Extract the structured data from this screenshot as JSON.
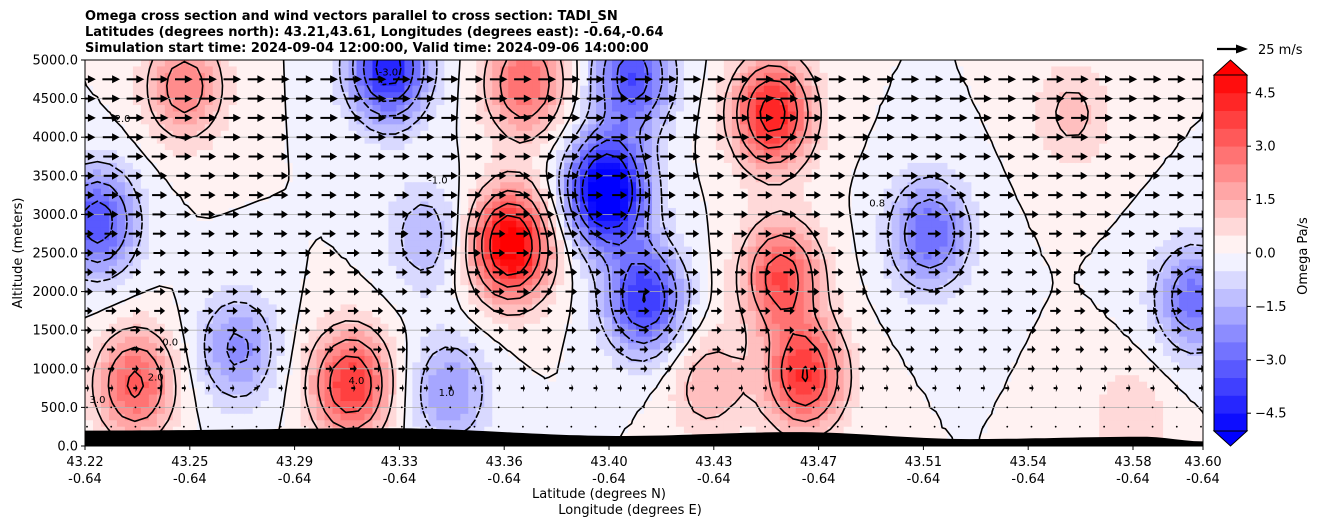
{
  "chart_data": {
    "type": "contour",
    "title": {
      "line1": "Omega cross section and wind vectors parallel to cross section: TADI_SN",
      "line2": "Latitudes (degrees north): 43.21,43.61, Longitudes (degrees east): -0.64,-0.64",
      "line3": "Simulation start time: 2024-09-04 12:00:00, Valid time: 2024-09-06 14:00:00"
    },
    "ylabel": "Altitude (meters)",
    "xlabel_lat": "Latitude (degrees N)",
    "xlabel_lon": "Longitude (degrees E)",
    "ylim": [
      0,
      5000
    ],
    "yticks": [
      "0.0",
      "500.0",
      "1000.0",
      "1500.0",
      "2000.0",
      "2500.0",
      "3000.0",
      "3500.0",
      "4000.0",
      "4500.0",
      "5000.0"
    ],
    "xticks": [
      {
        "lat": "43.22",
        "lon": "-0.64"
      },
      {
        "lat": "43.25",
        "lon": "-0.64"
      },
      {
        "lat": "43.29",
        "lon": "-0.64"
      },
      {
        "lat": "43.33",
        "lon": "-0.64"
      },
      {
        "lat": "43.36",
        "lon": "-0.64"
      },
      {
        "lat": "43.40",
        "lon": "-0.64"
      },
      {
        "lat": "43.43",
        "lon": "-0.64"
      },
      {
        "lat": "43.47",
        "lon": "-0.64"
      },
      {
        "lat": "43.51",
        "lon": "-0.64"
      },
      {
        "lat": "43.54",
        "lon": "-0.64"
      },
      {
        "lat": "43.58",
        "lon": "-0.64"
      },
      {
        "lat": "43.60",
        "lon": "-0.64"
      }
    ],
    "grid": "horizontal",
    "quiver_key": "25 m/s",
    "colorbar": {
      "label": "Omega Pa/s",
      "range": [
        -5,
        5
      ],
      "extend": "both",
      "ticks": [
        "−4.5",
        "−3.0",
        "−1.5",
        "0.0",
        "1.5",
        "3.0",
        "4.5"
      ]
    },
    "contour_labels": [
      "-2.0",
      "-3.0",
      "-1.0",
      "0.0",
      "1.0",
      "2.0",
      "3.0",
      "4.0",
      "0.8"
    ],
    "omega_centers": [
      {
        "lat": 43.22,
        "z": 2900,
        "value": -3.5
      },
      {
        "lat": 43.233,
        "z": 800,
        "value": 3.2
      },
      {
        "lat": 43.268,
        "z": 1250,
        "value": -2.2
      },
      {
        "lat": 43.25,
        "z": 4650,
        "value": 2.5
      },
      {
        "lat": 43.307,
        "z": 800,
        "value": 4.0
      },
      {
        "lat": 43.32,
        "z": 4900,
        "value": -4.5
      },
      {
        "lat": 43.333,
        "z": 2700,
        "value": -1.5
      },
      {
        "lat": 43.341,
        "z": 700,
        "value": -2.0
      },
      {
        "lat": 43.362,
        "z": 2600,
        "value": 5.5
      },
      {
        "lat": 43.367,
        "z": 4700,
        "value": 3.0
      },
      {
        "lat": 43.395,
        "z": 3300,
        "value": -6.0
      },
      {
        "lat": 43.408,
        "z": 1900,
        "value": -4.0
      },
      {
        "lat": 43.404,
        "z": 4800,
        "value": -3.5
      },
      {
        "lat": 43.452,
        "z": 4300,
        "value": 4.5
      },
      {
        "lat": 43.455,
        "z": 2200,
        "value": 3.5
      },
      {
        "lat": 43.463,
        "z": 900,
        "value": 4.0
      },
      {
        "lat": 43.506,
        "z": 2750,
        "value": -3.0
      },
      {
        "lat": 43.555,
        "z": 4300,
        "value": 1.2
      },
      {
        "lat": 43.597,
        "z": 1900,
        "value": -2.8
      },
      {
        "lat": 43.575,
        "z": 350,
        "value": 1.0
      },
      {
        "lat": 43.43,
        "z": 800,
        "value": 1.5
      }
    ],
    "terrain": [
      {
        "lat": 43.22,
        "z": 200
      },
      {
        "lat": 43.32,
        "z": 230
      },
      {
        "lat": 43.4,
        "z": 130
      },
      {
        "lat": 43.46,
        "z": 180
      },
      {
        "lat": 43.52,
        "z": 90
      },
      {
        "lat": 43.58,
        "z": 120
      },
      {
        "lat": 43.6,
        "z": 60
      }
    ],
    "wind": {
      "levels_m": [
        4750,
        4500,
        4250,
        4000,
        3750,
        3500,
        3250,
        3000,
        2750,
        2500,
        2250,
        2000,
        1750,
        1500,
        1250,
        1000,
        750,
        500,
        250
      ],
      "speed_ms": [
        21,
        21,
        21,
        20,
        19,
        18,
        18,
        17,
        16,
        15,
        14,
        14,
        13,
        12,
        10,
        8,
        5,
        3,
        1
      ]
    }
  }
}
